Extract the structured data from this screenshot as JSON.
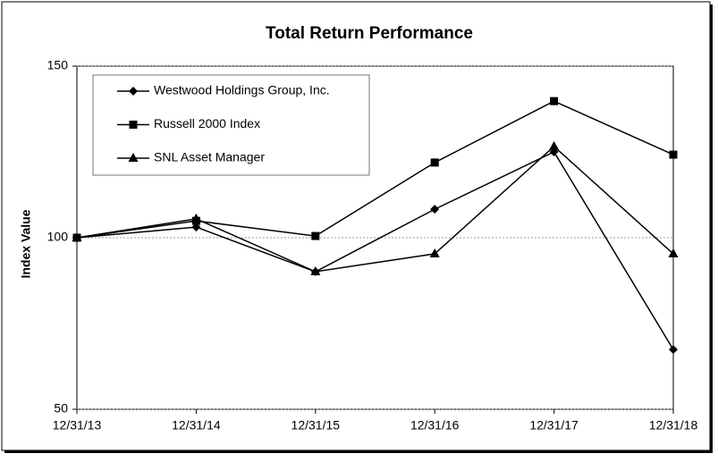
{
  "chart_data": {
    "type": "line",
    "title": "Total Return Performance",
    "y_label": "Index Value",
    "x": [
      "12/31/13",
      "12/31/14",
      "12/31/15",
      "12/31/16",
      "12/31/17",
      "12/31/18"
    ],
    "series": [
      {
        "name": "Westwood Holdings Group, Inc.",
        "color": "#000000",
        "marker": "diamond",
        "values": [
          100,
          103.1,
          90.1,
          108.3,
          125.0,
          67.4
        ]
      },
      {
        "name": "Russell 2000 Index",
        "color": "#000000",
        "marker": "square",
        "values": [
          100,
          104.9,
          100.5,
          121.9,
          139.8,
          124.2
        ]
      },
      {
        "name": "SNL Asset Manager",
        "color": "#000000",
        "marker": "triangle",
        "values": [
          100,
          105.5,
          90.1,
          95.3,
          126.6,
          95.3
        ]
      }
    ],
    "ylim": [
      50,
      150
    ],
    "yticks": [
      50,
      100,
      150
    ],
    "grid": true,
    "legend": "upper left"
  }
}
